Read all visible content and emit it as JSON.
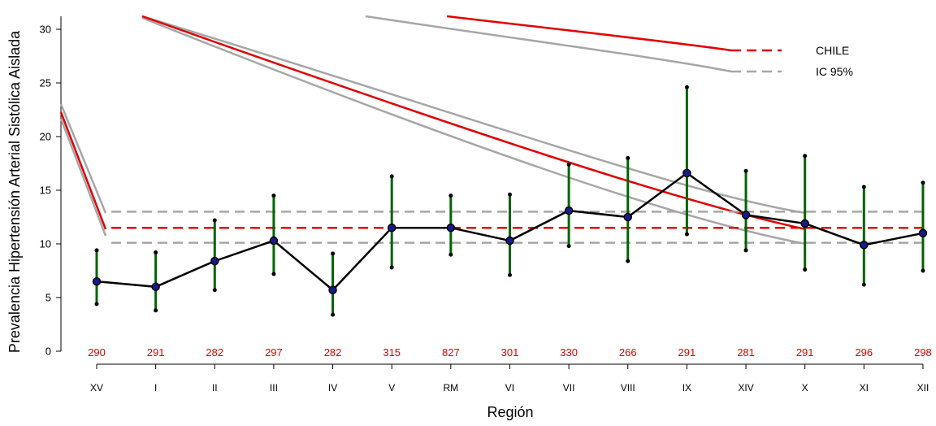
{
  "chart_data": {
    "type": "line",
    "xlabel": "Región",
    "ylabel": "Prevalencia Hipertensión Arterial Sistólica Aislada",
    "ylim": [
      0,
      31
    ],
    "yticks": [
      0,
      5,
      10,
      15,
      20,
      25,
      30
    ],
    "categories": [
      "XV",
      "I",
      "II",
      "III",
      "IV",
      "V",
      "RM",
      "VI",
      "VII",
      "VIII",
      "IX",
      "XIV",
      "X",
      "XI",
      "XII"
    ],
    "series": [
      {
        "values": [
          6.5,
          6.0,
          8.4,
          10.3,
          5.7,
          11.5,
          11.5,
          10.3,
          13.1,
          12.5,
          16.6,
          12.7,
          11.9,
          9.9,
          11.0
        ],
        "lower": [
          4.4,
          3.8,
          5.7,
          7.2,
          3.4,
          7.8,
          9.0,
          7.1,
          9.8,
          8.4,
          10.9,
          9.4,
          7.6,
          6.2,
          7.5
        ],
        "upper": [
          9.4,
          9.2,
          12.2,
          14.5,
          9.1,
          16.3,
          14.5,
          14.6,
          17.4,
          18.0,
          24.6,
          16.8,
          18.2,
          15.3,
          15.7
        ]
      }
    ],
    "sample_sizes": [
      "290",
      "291",
      "282",
      "297",
      "282",
      "315",
      "827",
      "301",
      "330",
      "266",
      "291",
      "281",
      "291",
      "296",
      "298"
    ],
    "reference": {
      "label": "CHILE",
      "value": 11.5,
      "ci_label": "IC 95%",
      "ci_lower": 10.1,
      "ci_upper": 13.0
    },
    "colors": {
      "line": "#000000",
      "point_fill": "#1a1a8c",
      "error_bar": "#006400",
      "reference": "#e00000",
      "ci": "#a6a6a6",
      "sample_size": "#e00000"
    },
    "legend_position": "top-right",
    "grid": false
  }
}
